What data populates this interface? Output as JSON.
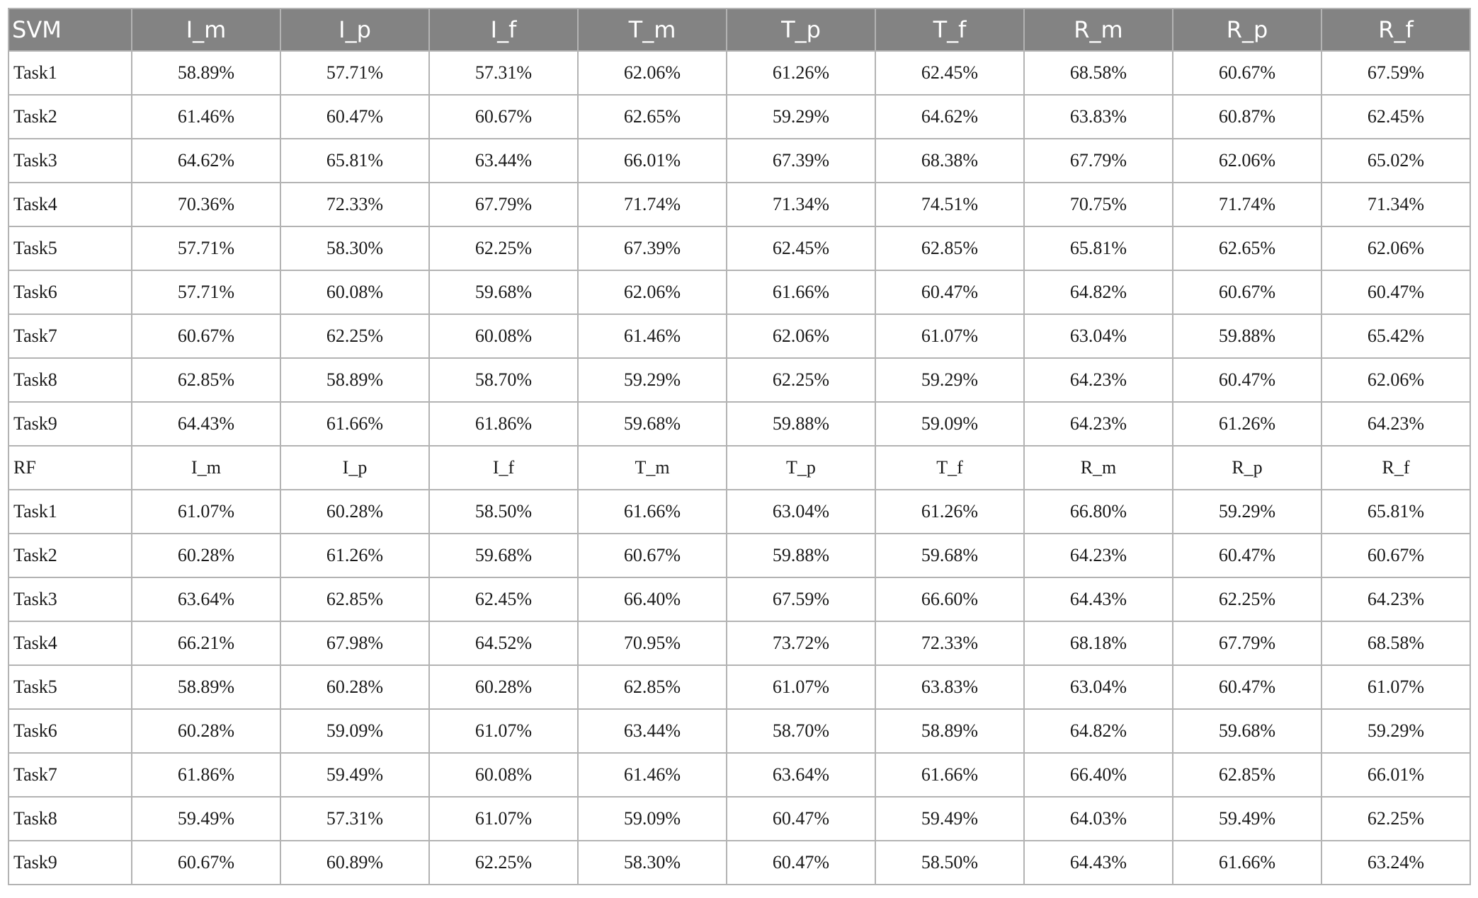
{
  "columns": [
    "I_m",
    "I_p",
    "I_f",
    "T_m",
    "T_p",
    "T_f",
    "R_m",
    "R_p",
    "R_f"
  ],
  "svm": {
    "label": "SVM",
    "rows": [
      {
        "task": "Task1",
        "values": [
          "58.89%",
          "57.71%",
          "57.31%",
          "62.06%",
          "61.26%",
          "62.45%",
          "68.58%",
          "60.67%",
          "67.59%"
        ]
      },
      {
        "task": "Task2",
        "values": [
          "61.46%",
          "60.47%",
          "60.67%",
          "62.65%",
          "59.29%",
          "64.62%",
          "63.83%",
          "60.87%",
          "62.45%"
        ]
      },
      {
        "task": "Task3",
        "values": [
          "64.62%",
          "65.81%",
          "63.44%",
          "66.01%",
          "67.39%",
          "68.38%",
          "67.79%",
          "62.06%",
          "65.02%"
        ]
      },
      {
        "task": "Task4",
        "values": [
          "70.36%",
          "72.33%",
          "67.79%",
          "71.74%",
          "71.34%",
          "74.51%",
          "70.75%",
          "71.74%",
          "71.34%"
        ]
      },
      {
        "task": "Task5",
        "values": [
          "57.71%",
          "58.30%",
          "62.25%",
          "67.39%",
          "62.45%",
          "62.85%",
          "65.81%",
          "62.65%",
          "62.06%"
        ]
      },
      {
        "task": "Task6",
        "values": [
          "57.71%",
          "60.08%",
          "59.68%",
          "62.06%",
          "61.66%",
          "60.47%",
          "64.82%",
          "60.67%",
          "60.47%"
        ]
      },
      {
        "task": "Task7",
        "values": [
          "60.67%",
          "62.25%",
          "60.08%",
          "61.46%",
          "62.06%",
          "61.07%",
          "63.04%",
          "59.88%",
          "65.42%"
        ]
      },
      {
        "task": "Task8",
        "values": [
          "62.85%",
          "58.89%",
          "58.70%",
          "59.29%",
          "62.25%",
          "59.29%",
          "64.23%",
          "60.47%",
          "62.06%"
        ]
      },
      {
        "task": "Task9",
        "values": [
          "64.43%",
          "61.66%",
          "61.86%",
          "59.68%",
          "59.88%",
          "59.09%",
          "64.23%",
          "61.26%",
          "64.23%"
        ]
      }
    ]
  },
  "rf": {
    "label": "RF",
    "rows": [
      {
        "task": "Task1",
        "values": [
          "61.07%",
          "60.28%",
          "58.50%",
          "61.66%",
          "63.04%",
          "61.26%",
          "66.80%",
          "59.29%",
          "65.81%"
        ]
      },
      {
        "task": "Task2",
        "values": [
          "60.28%",
          "61.26%",
          "59.68%",
          "60.67%",
          "59.88%",
          "59.68%",
          "64.23%",
          "60.47%",
          "60.67%"
        ]
      },
      {
        "task": "Task3",
        "values": [
          "63.64%",
          "62.85%",
          "62.45%",
          "66.40%",
          "67.59%",
          "66.60%",
          "64.43%",
          "62.25%",
          "64.23%"
        ]
      },
      {
        "task": "Task4",
        "values": [
          "66.21%",
          "67.98%",
          "64.52%",
          "70.95%",
          "73.72%",
          "72.33%",
          "68.18%",
          "67.79%",
          "68.58%"
        ]
      },
      {
        "task": "Task5",
        "values": [
          "58.89%",
          "60.28%",
          "60.28%",
          "62.85%",
          "61.07%",
          "63.83%",
          "63.04%",
          "60.47%",
          "61.07%"
        ]
      },
      {
        "task": "Task6",
        "values": [
          "60.28%",
          "59.09%",
          "61.07%",
          "63.44%",
          "58.70%",
          "58.89%",
          "64.82%",
          "59.68%",
          "59.29%"
        ]
      },
      {
        "task": "Task7",
        "values": [
          "61.86%",
          "59.49%",
          "60.08%",
          "61.46%",
          "63.64%",
          "61.66%",
          "66.40%",
          "62.85%",
          "66.01%"
        ]
      },
      {
        "task": "Task8",
        "values": [
          "59.49%",
          "57.31%",
          "61.07%",
          "59.09%",
          "60.47%",
          "59.49%",
          "64.03%",
          "59.49%",
          "62.25%"
        ]
      },
      {
        "task": "Task9",
        "values": [
          "60.67%",
          "60.89%",
          "62.25%",
          "58.30%",
          "60.47%",
          "58.50%",
          "64.43%",
          "61.66%",
          "63.24%"
        ]
      }
    ]
  },
  "colors": {
    "header_bg": "#838383",
    "header_text": "#ffffff",
    "border": "#b3b3b3"
  }
}
